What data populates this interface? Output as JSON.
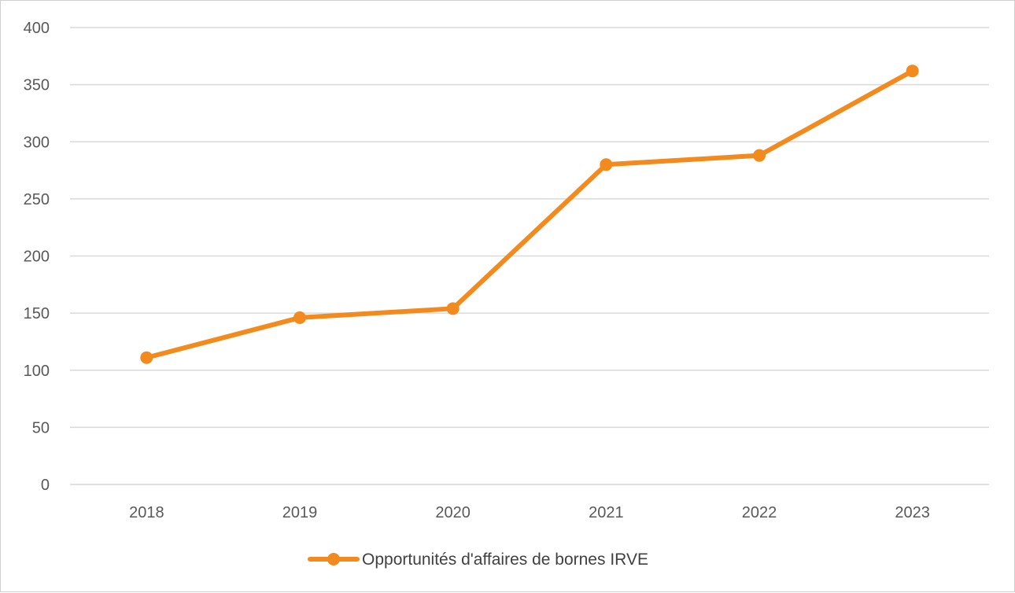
{
  "chart_data": {
    "type": "line",
    "categories": [
      "2018",
      "2019",
      "2020",
      "2021",
      "2022",
      "2023"
    ],
    "series": [
      {
        "name": "Opportunités d'affaires de bornes IRVE",
        "values": [
          111,
          146,
          154,
          280,
          288,
          362
        ],
        "color": "#f28a1e"
      }
    ],
    "y_ticks": [
      "0",
      "50",
      "100",
      "150",
      "200",
      "250",
      "300",
      "350",
      "400"
    ],
    "ylim": [
      0,
      400
    ],
    "grid": true,
    "legend_position": "bottom",
    "title": "",
    "xlabel": "",
    "ylabel": ""
  }
}
